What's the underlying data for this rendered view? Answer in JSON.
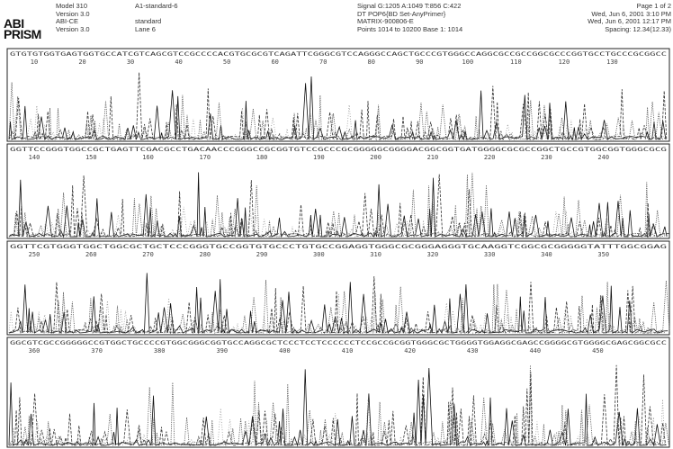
{
  "header": {
    "logo": [
      "ABI",
      "PRISM"
    ],
    "instrument": [
      "Model 310",
      "Version 3.0",
      "ABI-CE",
      "Version 3.0"
    ],
    "sample": [
      "A1-standard-6",
      "standard",
      "Lane 6"
    ],
    "run": [
      "Signal G:1205 A:1049 T:856 C:422",
      "DT POP6{BD Set-AnyPrimer}",
      "MATRIX-900806-E",
      "Points 1014 to 10200   Base 1: 1014"
    ],
    "page": [
      "Page 1 of 2",
      "Wed, Jun 6, 2001  3:10 PM",
      "Wed, Jun 6, 2001  12:17 PM",
      "Spacing: 12.34(12.33)"
    ]
  },
  "panels": [
    {
      "sequence": "GTGTGTGGTGAGTGGTGCCATCGTCAGCGTCCGCCCCACGTGCGCGTCAGATTCGGGCGTCCAGGGCCAGCTGCCCGTGGGCCAGGCGCCGCCGGCGCCCGGTGCCTGCCCGCGGCC",
      "positions": [
        "10",
        "20",
        "30",
        "40",
        "50",
        "60",
        "70",
        "80",
        "90",
        "100",
        "110",
        "120",
        "130"
      ]
    },
    {
      "sequence": "GGTTCCGGGTGGCCGCTGAGTTCGACGCCTGACAACCCGGGCCGCGGTGTCCGCCCGCGGGGGCGGGGACGGCGGTGATGGGGCGCGCCGGCTGCCGTGGCGGTGGGCGCG",
      "positions": [
        "140",
        "150",
        "160",
        "170",
        "180",
        "190",
        "200",
        "210",
        "220",
        "230",
        "240"
      ]
    },
    {
      "sequence": "GGTTCGTGGGTGGCTGGCGCTGCTCCCGGGTGCCGGTGTGCCCTGTGCCGGAGGTGGGCGCGGGAGGGTGCAAGGTCGGCGCGGGGGTATTTGGCGGAG",
      "positions": [
        "250",
        "260",
        "270",
        "280",
        "290",
        "300",
        "310",
        "320",
        "330",
        "340",
        "350"
      ]
    },
    {
      "sequence": "GGCGTCGCCGGGGGCCGTGGCTGCCCCGTGGCGGGCGGTGCCAGGCGCTCCCTCCTCCCCCCTCCGCCGCGGTGGGCGCTGGGGTGGAGGCGAGCCGGGGCGTGGGGCGAGCGGCGCC",
      "positions": [
        "360",
        "370",
        "380",
        "390",
        "400",
        "410",
        "420",
        "430",
        "440",
        "450"
      ]
    }
  ]
}
